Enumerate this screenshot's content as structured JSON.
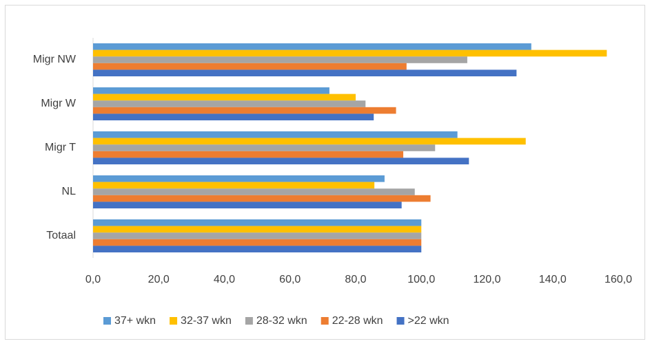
{
  "chart_data": {
    "type": "hbar",
    "categories": [
      "Totaal",
      "NL",
      "Migr T",
      "Migr W",
      "Migr NW"
    ],
    "series": [
      {
        "name": "37+ wkn",
        "color": "#5b9bd5",
        "values": [
          100,
          88.8,
          111,
          72,
          133.5
        ]
      },
      {
        "name": "32-37 wkn",
        "color": "#ffc000",
        "values": [
          100,
          85.7,
          131.8,
          80,
          156.5
        ]
      },
      {
        "name": "28-32 wkn",
        "color": "#a5a5a5",
        "values": [
          100,
          98,
          104.2,
          83,
          114
        ]
      },
      {
        "name": "22-28 wkn",
        "color": "#ed7d31",
        "values": [
          100,
          102.8,
          94.5,
          92.3,
          95.5
        ]
      },
      {
        "name": ">22 wkn",
        "color": "#4472c4",
        "values": [
          100,
          94,
          114.5,
          85.5,
          129
        ]
      }
    ],
    "xlim": [
      0,
      160
    ],
    "xticks": [
      {
        "value": 0,
        "label": "0,0"
      },
      {
        "value": 20,
        "label": "20,0"
      },
      {
        "value": 40,
        "label": "40,0"
      },
      {
        "value": 60,
        "label": "60,0"
      },
      {
        "value": 80,
        "label": "80,0"
      },
      {
        "value": 100,
        "label": "100,0"
      },
      {
        "value": 120,
        "label": "120,0"
      },
      {
        "value": 140,
        "label": "140,0"
      },
      {
        "value": 160,
        "label": "160,0"
      }
    ],
    "grid": false,
    "legend": "bottom"
  }
}
